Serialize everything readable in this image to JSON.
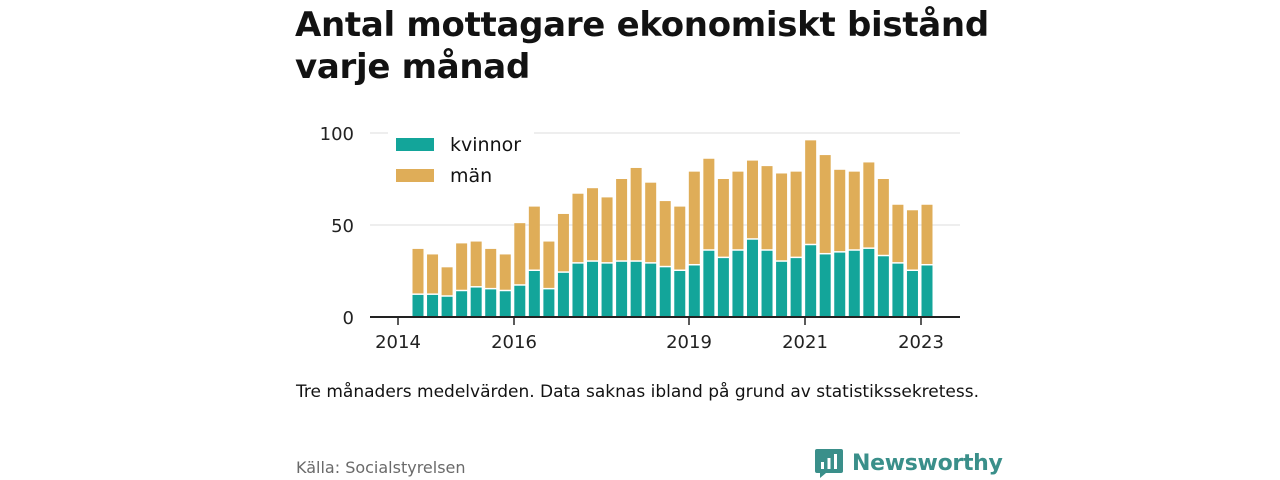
{
  "title": "Antal mottagare ekonomiskt bistånd varje månad",
  "note": "Tre månaders medelvärden. Data saknas ibland på grund av statistikssekretess.",
  "source": "Källa: Socialstyrelsen",
  "brand": {
    "name": "Newsworthy",
    "icon": "newsworthy-logo-icon",
    "color": "#3a8f8a"
  },
  "chart_data": {
    "type": "bar",
    "stacked": true,
    "x_ticks": [
      "2014",
      "2016",
      "2019",
      "2021",
      "2023"
    ],
    "y_ticks": [
      0,
      50,
      100
    ],
    "ylim": [
      0,
      100
    ],
    "grid": true,
    "legend_position": "top-left",
    "series": [
      {
        "name": "kvinnor",
        "color": "#13a59a",
        "values": [
          12,
          12,
          11,
          14,
          16,
          15,
          14,
          17,
          25,
          15,
          24,
          29,
          30,
          29,
          30,
          30,
          29,
          27,
          25,
          28,
          36,
          32,
          36,
          42,
          36,
          30,
          32,
          39,
          34,
          35,
          36,
          37,
          33,
          29,
          25,
          28
        ]
      },
      {
        "name": "män",
        "color": "#dfad58",
        "values": [
          25,
          22,
          16,
          26,
          25,
          22,
          20,
          34,
          35,
          26,
          32,
          38,
          40,
          36,
          45,
          51,
          44,
          36,
          35,
          51,
          50,
          43,
          43,
          43,
          46,
          48,
          47,
          57,
          54,
          45,
          43,
          47,
          42,
          32,
          33,
          33
        ]
      }
    ]
  }
}
